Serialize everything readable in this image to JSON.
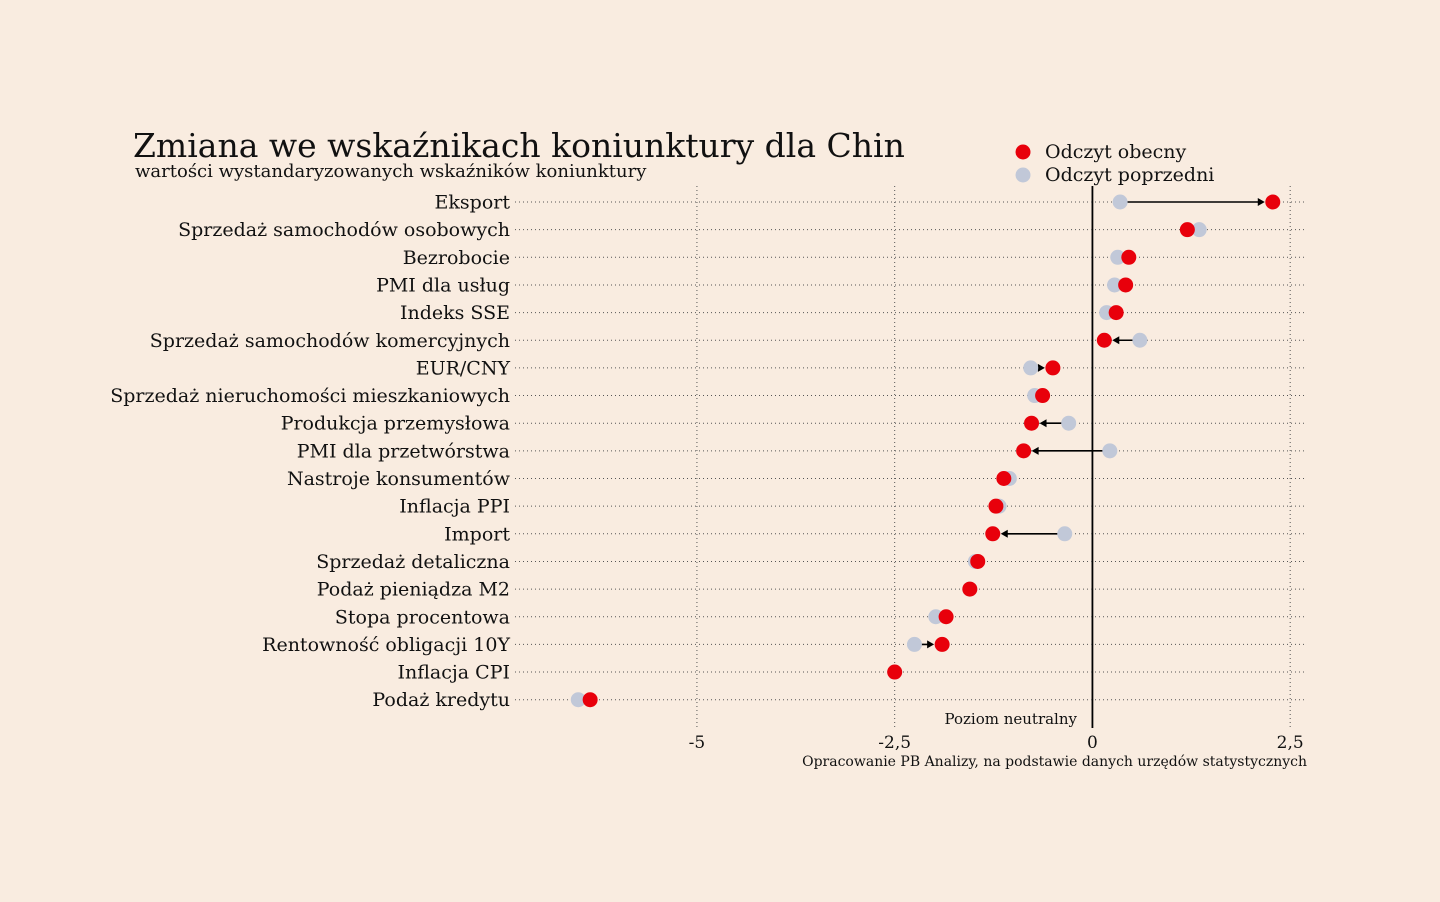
{
  "chart_data": {
    "type": "dot",
    "title": "Zmiana we wskaźnikach koniunktury dla Chin",
    "subtitle": "wartości wystandaryzowanych wskaźników koniunktury",
    "source": "Opracowanie PB Analizy, na podstawie danych urzędów statystycznych",
    "neutral_label": "Poziom neutralny",
    "xlim": [
      -7.3,
      2.7
    ],
    "x_ticks": [
      {
        "value": -5,
        "label": "-5"
      },
      {
        "value": -2.5,
        "label": "-2,5"
      },
      {
        "value": 0,
        "label": "0"
      },
      {
        "value": 2.5,
        "label": "2,5"
      }
    ],
    "grid": true,
    "legend_position": "top-right",
    "series": [
      {
        "name": "Odczyt obecny",
        "color": "#e8000b"
      },
      {
        "name": "Odczyt poprzedni",
        "color": "#c1c8d8"
      }
    ],
    "categories": [
      "Eksport",
      "Sprzedaż samochodów osobowych",
      "Bezrobocie",
      "PMI dla usług",
      "Indeks SSE",
      "Sprzedaż samochodów komercyjnych",
      "EUR/CNY",
      "Sprzedaż nieruchomości mieszkaniowych",
      "Produkcja przemysłowa",
      "PMI dla przetwórstwa",
      "Nastroje konsumentów",
      "Inflacja PPI",
      "Import",
      "Sprzedaż detaliczna",
      "Podaż pieniądza M2",
      "Stopa procentowa",
      "Rentowność obligacji 10Y",
      "Inflacja CPI",
      "Podaż kredytu"
    ],
    "current": [
      2.28,
      1.2,
      0.46,
      0.42,
      0.3,
      0.15,
      -0.5,
      -0.63,
      -0.77,
      -0.87,
      -1.12,
      -1.22,
      -1.26,
      -1.45,
      -1.55,
      -1.85,
      -1.9,
      -2.5,
      -6.35
    ],
    "previous": [
      0.35,
      1.35,
      0.32,
      0.28,
      0.18,
      0.6,
      -0.78,
      -0.73,
      -0.3,
      0.22,
      -1.05,
      -1.18,
      -0.35,
      -1.48,
      -1.55,
      -1.98,
      -2.25,
      -2.5,
      -6.5
    ]
  }
}
